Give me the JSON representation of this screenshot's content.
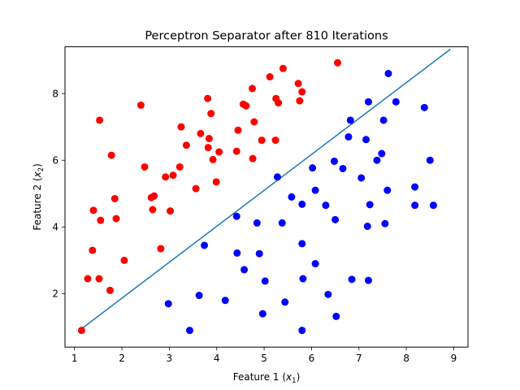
{
  "chart_data": {
    "type": "scatter",
    "title": "Perceptron Separator after 810 Iterations",
    "xlabel": {
      "main": "Feature 1 (",
      "var": "x",
      "sub": "1",
      "close": ")"
    },
    "ylabel": {
      "main": "Feature 2 (",
      "var": "x",
      "sub": "2",
      "close": ")"
    },
    "xlim": [
      0.8,
      9.3
    ],
    "ylim": [
      0.4,
      9.4
    ],
    "xticks": [
      "1",
      "2",
      "3",
      "4",
      "5",
      "6",
      "7",
      "8",
      "9"
    ],
    "yticks": [
      "2",
      "4",
      "6",
      "8"
    ],
    "grid": false,
    "series": [
      {
        "color": "#ff0000",
        "points": [
          [
            1.15,
            0.9
          ],
          [
            1.28,
            2.45
          ],
          [
            1.38,
            3.3
          ],
          [
            1.4,
            4.5
          ],
          [
            1.52,
            2.45
          ],
          [
            1.55,
            4.2
          ],
          [
            1.53,
            7.2
          ],
          [
            1.75,
            2.1
          ],
          [
            1.78,
            6.15
          ],
          [
            1.85,
            4.85
          ],
          [
            1.88,
            4.25
          ],
          [
            2.05,
            3.0
          ],
          [
            2.4,
            7.65
          ],
          [
            2.48,
            5.8
          ],
          [
            2.62,
            4.88
          ],
          [
            2.65,
            4.52
          ],
          [
            2.68,
            4.93
          ],
          [
            2.82,
            3.35
          ],
          [
            2.92,
            5.5
          ],
          [
            3.02,
            4.48
          ],
          [
            3.08,
            5.55
          ],
          [
            3.22,
            5.8
          ],
          [
            3.25,
            7.0
          ],
          [
            3.36,
            6.45
          ],
          [
            3.56,
            5.15
          ],
          [
            3.66,
            6.8
          ],
          [
            3.81,
            7.85
          ],
          [
            3.82,
            6.38
          ],
          [
            3.84,
            6.65
          ],
          [
            3.88,
            7.4
          ],
          [
            3.92,
            6.02
          ],
          [
            3.99,
            5.35
          ],
          [
            4.05,
            6.25
          ],
          [
            4.42,
            6.27
          ],
          [
            4.45,
            6.9
          ],
          [
            4.56,
            7.68
          ],
          [
            4.62,
            7.63
          ],
          [
            4.75,
            8.15
          ],
          [
            4.76,
            6.05
          ],
          [
            4.79,
            7.15
          ],
          [
            4.95,
            6.6
          ],
          [
            5.12,
            8.5
          ],
          [
            5.24,
            6.6
          ],
          [
            5.25,
            7.85
          ],
          [
            5.3,
            7.72
          ],
          [
            5.4,
            8.75
          ],
          [
            5.72,
            8.3
          ],
          [
            5.75,
            7.78
          ],
          [
            5.8,
            8.05
          ],
          [
            6.55,
            8.92
          ]
        ]
      },
      {
        "color": "#0000ff",
        "points": [
          [
            2.98,
            1.7
          ],
          [
            3.43,
            0.9
          ],
          [
            3.63,
            1.95
          ],
          [
            3.74,
            3.45
          ],
          [
            4.18,
            1.8
          ],
          [
            4.42,
            4.32
          ],
          [
            4.43,
            3.22
          ],
          [
            4.58,
            2.72
          ],
          [
            4.85,
            4.12
          ],
          [
            4.9,
            3.2
          ],
          [
            4.97,
            1.4
          ],
          [
            5.02,
            2.38
          ],
          [
            5.28,
            5.5
          ],
          [
            5.38,
            4.12
          ],
          [
            5.44,
            1.75
          ],
          [
            5.58,
            4.9
          ],
          [
            5.8,
            4.68
          ],
          [
            5.8,
            3.5
          ],
          [
            5.82,
            2.45
          ],
          [
            5.8,
            0.9
          ],
          [
            6.02,
            5.77
          ],
          [
            6.08,
            5.1
          ],
          [
            6.08,
            2.9
          ],
          [
            6.3,
            4.65
          ],
          [
            6.35,
            1.98
          ],
          [
            6.48,
            5.97
          ],
          [
            6.5,
            4.22
          ],
          [
            6.52,
            1.32
          ],
          [
            6.66,
            5.75
          ],
          [
            6.78,
            6.7
          ],
          [
            6.82,
            7.2
          ],
          [
            6.85,
            2.43
          ],
          [
            7.05,
            5.47
          ],
          [
            7.15,
            6.62
          ],
          [
            7.18,
            4.02
          ],
          [
            7.2,
            7.75
          ],
          [
            7.2,
            2.4
          ],
          [
            7.23,
            4.67
          ],
          [
            7.38,
            6.0
          ],
          [
            7.48,
            6.2
          ],
          [
            7.52,
            7.2
          ],
          [
            7.55,
            4.1
          ],
          [
            7.6,
            5.1
          ],
          [
            7.62,
            8.6
          ],
          [
            7.78,
            7.75
          ],
          [
            8.18,
            5.2
          ],
          [
            8.18,
            4.65
          ],
          [
            8.38,
            7.58
          ],
          [
            8.5,
            6.0
          ],
          [
            8.57,
            4.65
          ]
        ]
      }
    ],
    "separator": {
      "color": "#1f77b4",
      "points": [
        [
          1.15,
          0.95
        ],
        [
          8.93,
          9.33
        ]
      ]
    }
  }
}
